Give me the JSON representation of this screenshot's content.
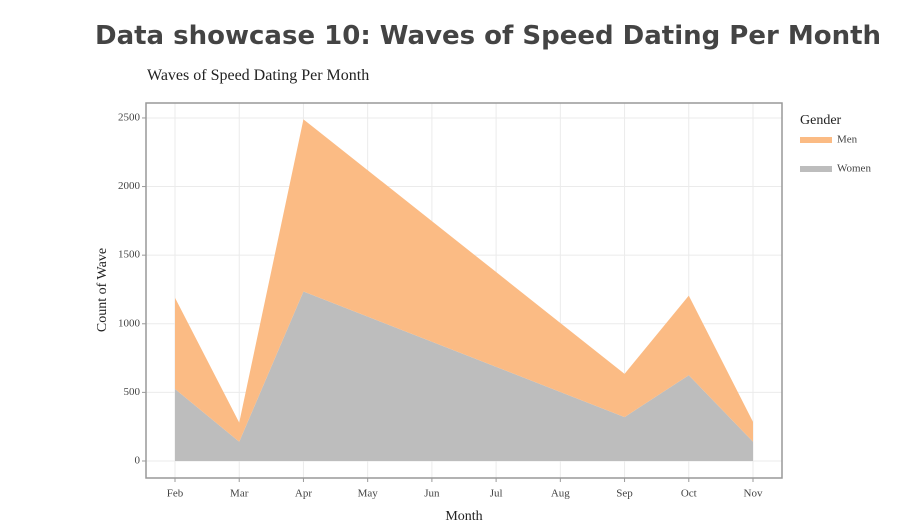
{
  "page_title": "Data showcase 10: Waves of Speed Dating Per Month",
  "chart_data": {
    "type": "area",
    "stacked": true,
    "title": "Waves of Speed Dating Per Month",
    "x_label": "Month",
    "y_label": "Count of Wave",
    "legend_title": "Gender",
    "categories": [
      "Feb",
      "Mar",
      "Apr",
      "May",
      "Jun",
      "Jul",
      "Aug",
      "Sep",
      "Oct",
      "Nov"
    ],
    "series": [
      {
        "name": "Men",
        "color": "#fbbb84",
        "values": [
          665,
          140,
          1255,
          1067,
          879,
          691,
          503,
          315,
          580,
          145
        ]
      },
      {
        "name": "Women",
        "color": "#bdbdbd",
        "values": [
          525,
          140,
          1235,
          1052,
          869,
          686,
          503,
          320,
          625,
          140
        ]
      }
    ],
    "ylim": [
      -124,
      2609
    ],
    "yticks": [
      0,
      500,
      1000,
      1500,
      2000,
      2500
    ],
    "grid": true,
    "legend": "right"
  }
}
